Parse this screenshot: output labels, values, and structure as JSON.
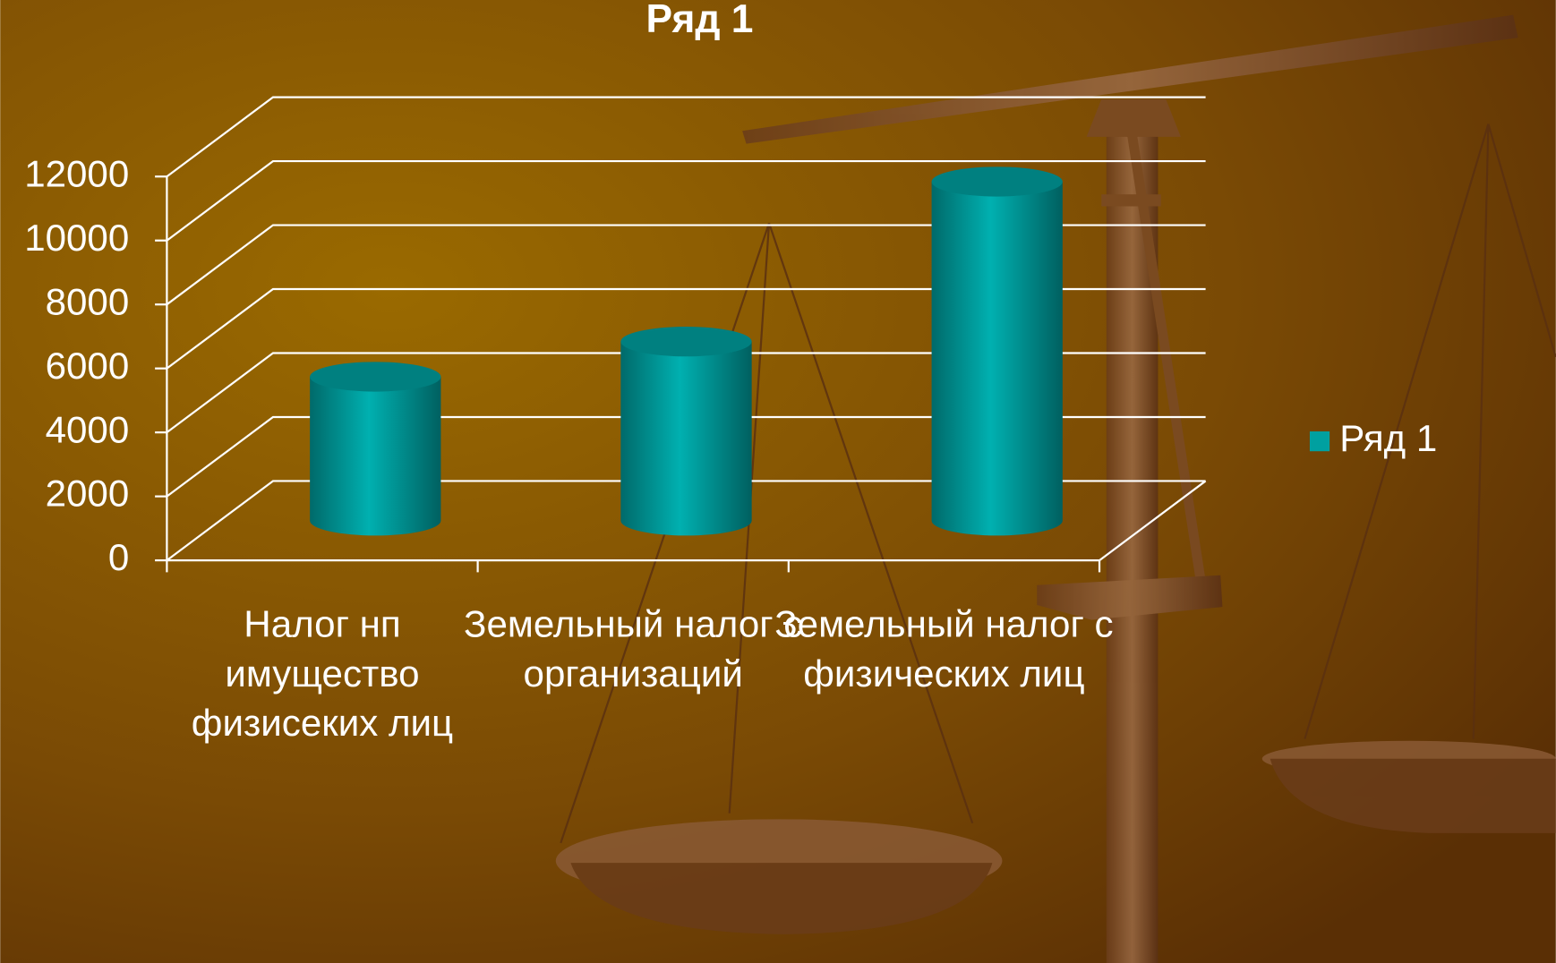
{
  "chart_data": {
    "type": "cylinder-bar",
    "title": "Ряд 1",
    "categories": [
      "Налог нп имущество физисеких лиц",
      "Земельный налог с организаций",
      "Земельный налог с физических лиц"
    ],
    "series": [
      {
        "name": "Ряд 1",
        "color": "#00a0a0",
        "values": [
          4500,
          5600,
          10600
        ]
      }
    ],
    "ylim": [
      0,
      12000
    ],
    "yticks": [
      0,
      2000,
      4000,
      6000,
      8000,
      10000,
      12000
    ],
    "grid": true,
    "legend": "right"
  }
}
